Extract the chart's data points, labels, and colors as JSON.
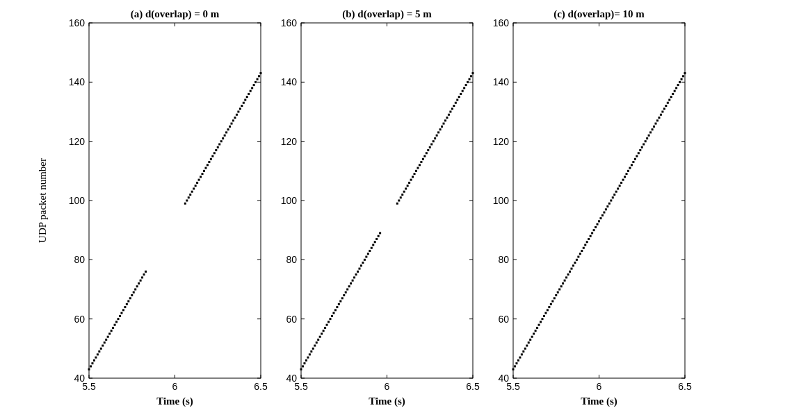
{
  "chart_data": [
    {
      "type": "scatter",
      "title": "(a) d(overlap) = 0 m",
      "xlabel": "Time (s)",
      "ylabel": "UDP packet number",
      "xlim": [
        5.5,
        6.5
      ],
      "xticks": [
        5.5,
        6,
        6.5
      ],
      "ylim": [
        40,
        160
      ],
      "yticks": [
        40,
        60,
        80,
        100,
        120,
        140,
        160
      ],
      "grid": false,
      "marker": "square",
      "series": [
        {
          "color": "#000000",
          "x": [
            5.5,
            5.51,
            5.52,
            5.53,
            5.54,
            5.55,
            5.56,
            5.57,
            5.58,
            5.59,
            5.6,
            5.61,
            5.62,
            5.63,
            5.64,
            5.65,
            5.66,
            5.67,
            5.68,
            5.69,
            5.7,
            5.71,
            5.72,
            5.73,
            5.74,
            5.75,
            5.76,
            5.77,
            5.78,
            5.79,
            5.8,
            5.81,
            5.82,
            5.83,
            6.06,
            6.07,
            6.08,
            6.09,
            6.1,
            6.11,
            6.12,
            6.13,
            6.14,
            6.15,
            6.16,
            6.17,
            6.18,
            6.19,
            6.2,
            6.21,
            6.22,
            6.23,
            6.24,
            6.25,
            6.26,
            6.27,
            6.28,
            6.29,
            6.3,
            6.31,
            6.32,
            6.33,
            6.34,
            6.35,
            6.36,
            6.37,
            6.38,
            6.39,
            6.4,
            6.41,
            6.42,
            6.43,
            6.44,
            6.45,
            6.46,
            6.47,
            6.48,
            6.49,
            6.5
          ],
          "values": [
            43,
            44,
            45,
            46,
            47,
            48,
            49,
            50,
            51,
            52,
            53,
            54,
            55,
            56,
            57,
            58,
            59,
            60,
            61,
            62,
            63,
            64,
            65,
            66,
            67,
            68,
            69,
            70,
            71,
            72,
            73,
            74,
            75,
            76,
            99,
            100,
            101,
            102,
            103,
            104,
            105,
            106,
            107,
            108,
            109,
            110,
            111,
            112,
            113,
            114,
            115,
            116,
            117,
            118,
            119,
            120,
            121,
            122,
            123,
            124,
            125,
            126,
            127,
            128,
            129,
            130,
            131,
            132,
            133,
            134,
            135,
            136,
            137,
            138,
            139,
            140,
            141,
            142,
            143
          ]
        }
      ]
    },
    {
      "type": "scatter",
      "title": "(b) d(overlap) = 5 m",
      "xlabel": "Time (s)",
      "xlim": [
        5.5,
        6.5
      ],
      "xticks": [
        5.5,
        6,
        6.5
      ],
      "ylim": [
        40,
        160
      ],
      "yticks": [
        40,
        60,
        80,
        100,
        120,
        140,
        160
      ],
      "grid": false,
      "marker": "square",
      "series": [
        {
          "color": "#000000",
          "x": [
            5.5,
            5.51,
            5.52,
            5.53,
            5.54,
            5.55,
            5.56,
            5.57,
            5.58,
            5.59,
            5.6,
            5.61,
            5.62,
            5.63,
            5.64,
            5.65,
            5.66,
            5.67,
            5.68,
            5.69,
            5.7,
            5.71,
            5.72,
            5.73,
            5.74,
            5.75,
            5.76,
            5.77,
            5.78,
            5.79,
            5.8,
            5.81,
            5.82,
            5.83,
            5.84,
            5.85,
            5.86,
            5.87,
            5.88,
            5.89,
            5.9,
            5.91,
            5.92,
            5.93,
            5.94,
            5.95,
            5.96,
            6.06,
            6.07,
            6.08,
            6.09,
            6.1,
            6.11,
            6.12,
            6.13,
            6.14,
            6.15,
            6.16,
            6.17,
            6.18,
            6.19,
            6.2,
            6.21,
            6.22,
            6.23,
            6.24,
            6.25,
            6.26,
            6.27,
            6.28,
            6.29,
            6.3,
            6.31,
            6.32,
            6.33,
            6.34,
            6.35,
            6.36,
            6.37,
            6.38,
            6.39,
            6.4,
            6.41,
            6.42,
            6.43,
            6.44,
            6.45,
            6.46,
            6.47,
            6.48,
            6.49,
            6.5
          ],
          "values": [
            43,
            44,
            45,
            46,
            47,
            48,
            49,
            50,
            51,
            52,
            53,
            54,
            55,
            56,
            57,
            58,
            59,
            60,
            61,
            62,
            63,
            64,
            65,
            66,
            67,
            68,
            69,
            70,
            71,
            72,
            73,
            74,
            75,
            76,
            77,
            78,
            79,
            80,
            81,
            82,
            83,
            84,
            85,
            86,
            87,
            88,
            89,
            99,
            100,
            101,
            102,
            103,
            104,
            105,
            106,
            107,
            108,
            109,
            110,
            111,
            112,
            113,
            114,
            115,
            116,
            117,
            118,
            119,
            120,
            121,
            122,
            123,
            124,
            125,
            126,
            127,
            128,
            129,
            130,
            131,
            132,
            133,
            134,
            135,
            136,
            137,
            138,
            139,
            140,
            141,
            142,
            143
          ]
        }
      ]
    },
    {
      "type": "scatter",
      "title": "(c) d(overlap)= 10 m",
      "xlabel": "Time (s)",
      "xlim": [
        5.5,
        6.5
      ],
      "xticks": [
        5.5,
        6,
        6.5
      ],
      "ylim": [
        40,
        160
      ],
      "yticks": [
        40,
        60,
        80,
        100,
        120,
        140,
        160
      ],
      "grid": false,
      "marker": "square",
      "series": [
        {
          "color": "#000000",
          "x": [
            5.5,
            5.51,
            5.52,
            5.53,
            5.54,
            5.55,
            5.56,
            5.57,
            5.58,
            5.59,
            5.6,
            5.61,
            5.62,
            5.63,
            5.64,
            5.65,
            5.66,
            5.67,
            5.68,
            5.69,
            5.7,
            5.71,
            5.72,
            5.73,
            5.74,
            5.75,
            5.76,
            5.77,
            5.78,
            5.79,
            5.8,
            5.81,
            5.82,
            5.83,
            5.84,
            5.85,
            5.86,
            5.87,
            5.88,
            5.89,
            5.9,
            5.91,
            5.92,
            5.93,
            5.94,
            5.95,
            5.96,
            5.97,
            5.98,
            5.99,
            6,
            6.01,
            6.02,
            6.03,
            6.04,
            6.05,
            6.06,
            6.07,
            6.08,
            6.09,
            6.1,
            6.11,
            6.12,
            6.13,
            6.14,
            6.15,
            6.16,
            6.17,
            6.18,
            6.19,
            6.2,
            6.21,
            6.22,
            6.23,
            6.24,
            6.25,
            6.26,
            6.27,
            6.28,
            6.29,
            6.3,
            6.31,
            6.32,
            6.33,
            6.34,
            6.35,
            6.36,
            6.37,
            6.38,
            6.39,
            6.4,
            6.41,
            6.42,
            6.43,
            6.44,
            6.45,
            6.46,
            6.47,
            6.48,
            6.49,
            6.5
          ],
          "values": [
            43,
            44,
            45,
            46,
            47,
            48,
            49,
            50,
            51,
            52,
            53,
            54,
            55,
            56,
            57,
            58,
            59,
            60,
            61,
            62,
            63,
            64,
            65,
            66,
            67,
            68,
            69,
            70,
            71,
            72,
            73,
            74,
            75,
            76,
            77,
            78,
            79,
            80,
            81,
            82,
            83,
            84,
            85,
            86,
            87,
            88,
            89,
            90,
            91,
            92,
            93,
            94,
            95,
            96,
            97,
            98,
            99,
            100,
            101,
            102,
            103,
            104,
            105,
            106,
            107,
            108,
            109,
            110,
            111,
            112,
            113,
            114,
            115,
            116,
            117,
            118,
            119,
            120,
            121,
            122,
            123,
            124,
            125,
            126,
            127,
            128,
            129,
            130,
            131,
            132,
            133,
            134,
            135,
            136,
            137,
            138,
            139,
            140,
            141,
            142,
            143
          ]
        }
      ]
    }
  ]
}
